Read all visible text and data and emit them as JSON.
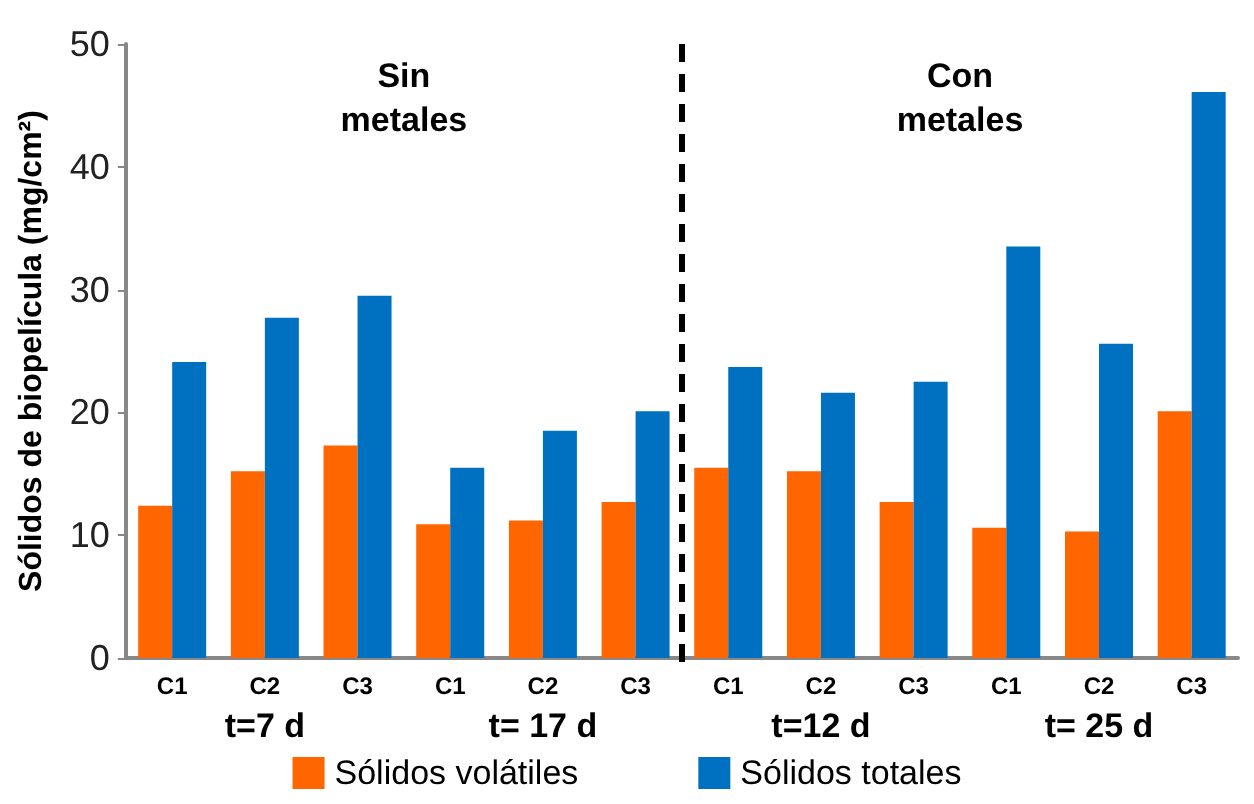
{
  "chart_data": {
    "type": "bar",
    "ylabel": "Sólidos de biopelícula (mg/cm²)",
    "categories": [
      "C1",
      "C2",
      "C3",
      "C1",
      "C2",
      "C3",
      "C1",
      "C2",
      "C3",
      "C1",
      "C2",
      "C3"
    ],
    "series": [
      {
        "name": "Sólidos volátiles",
        "color": "#ff6600",
        "values": [
          12.4,
          15.2,
          17.3,
          10.9,
          11.2,
          12.7,
          15.5,
          15.2,
          12.7,
          10.6,
          10.3,
          20.1
        ]
      },
      {
        "name": "Sólidos totales",
        "color": "#0070c0",
        "values": [
          24.1,
          27.7,
          29.5,
          15.5,
          18.5,
          20.1,
          23.7,
          21.6,
          22.5,
          33.5,
          25.6,
          46.1
        ]
      }
    ],
    "annotations": [
      "Sin\nmetales",
      "Con\nmetales",
      "t=7 d",
      "t= 17 d",
      "t=12 d",
      "t= 25 d"
    ],
    "ylim": [
      0,
      50
    ],
    "yticks": [
      0,
      10,
      20,
      30,
      40,
      50
    ],
    "grid": false,
    "legend": "bottom"
  }
}
